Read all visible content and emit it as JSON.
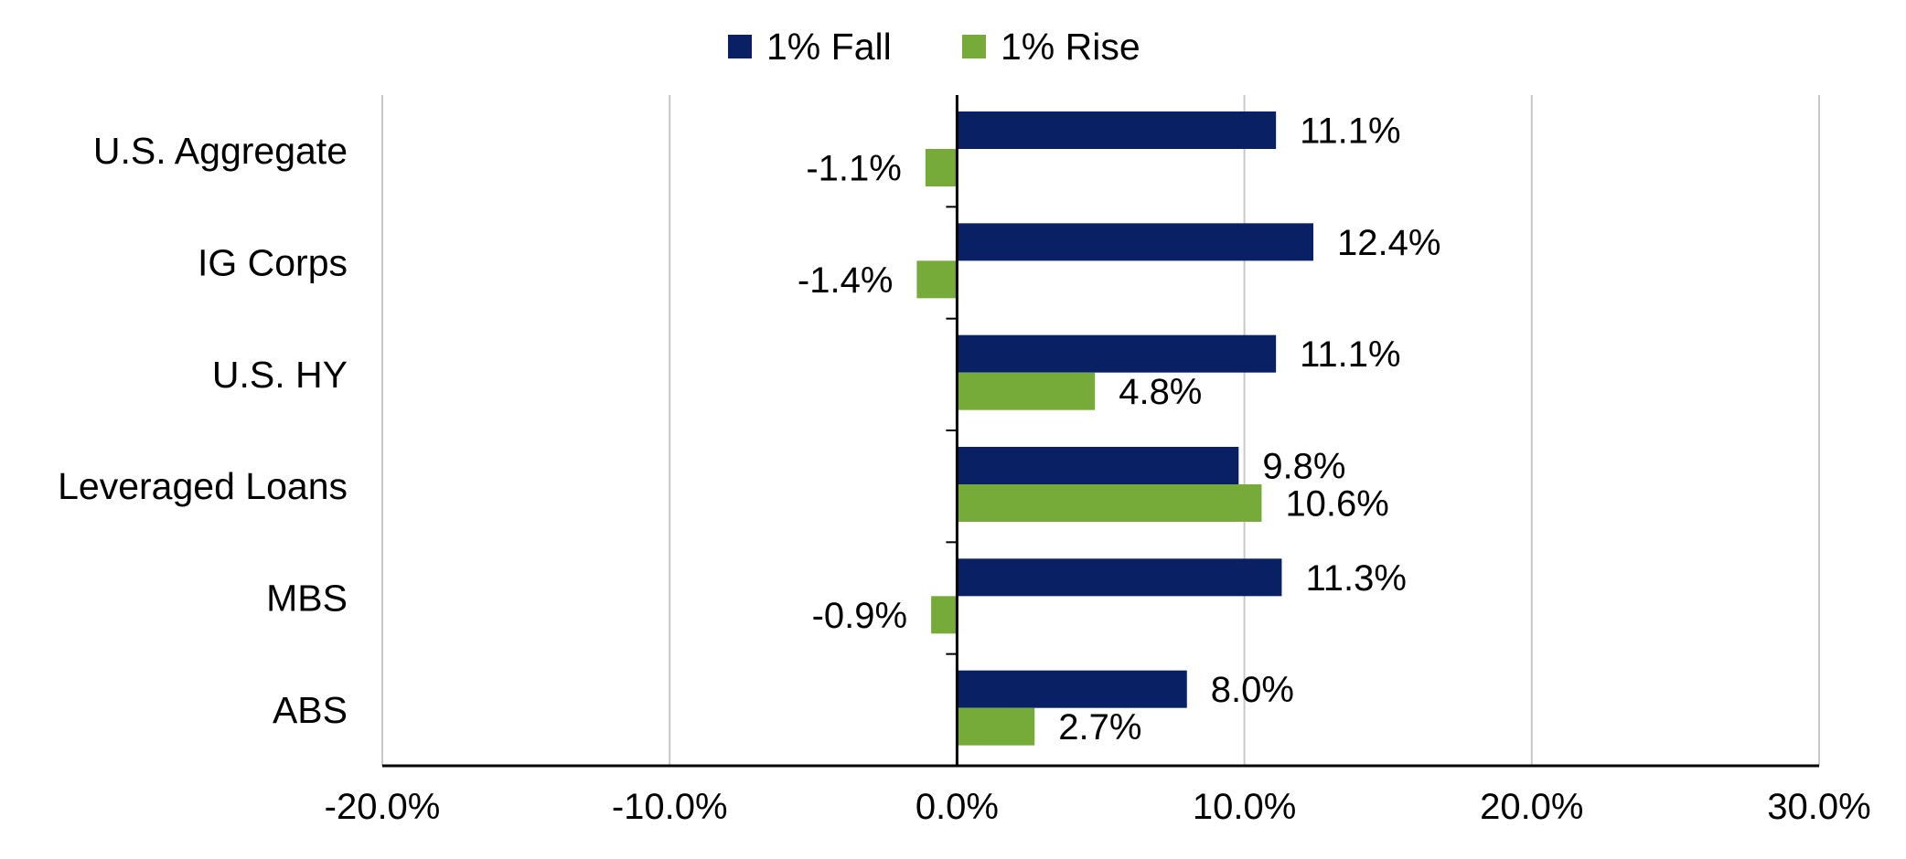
{
  "chart_data": {
    "type": "bar",
    "orientation": "horizontal",
    "title": "",
    "xlabel": "",
    "ylabel": "",
    "categories": [
      "U.S. Aggregate",
      "IG Corps",
      "U.S. HY",
      "Leveraged Loans",
      "MBS",
      "ABS"
    ],
    "series": [
      {
        "name": "1% Fall",
        "color": "#0a2065",
        "values": [
          11.1,
          12.4,
          11.1,
          9.8,
          11.3,
          8.0
        ],
        "labels": [
          "11.1%",
          "12.4%",
          "11.1%",
          "9.8%",
          "11.3%",
          "8.0%"
        ]
      },
      {
        "name": "1% Rise",
        "color": "#76ab3a",
        "values": [
          -1.1,
          -1.4,
          4.8,
          10.6,
          -0.9,
          2.7
        ],
        "labels": [
          "-1.1%",
          "-1.4%",
          "4.8%",
          "10.6%",
          "-0.9%",
          "2.7%"
        ]
      }
    ],
    "xlim": [
      -20,
      30
    ],
    "xticks": [
      -20,
      -10,
      0,
      10,
      20,
      30
    ],
    "xtick_labels": [
      "-20.0%",
      "-10.0%",
      "0.0%",
      "10.0%",
      "20.0%",
      "30.0%"
    ],
    "grid": true,
    "legend_position": "top-center"
  }
}
